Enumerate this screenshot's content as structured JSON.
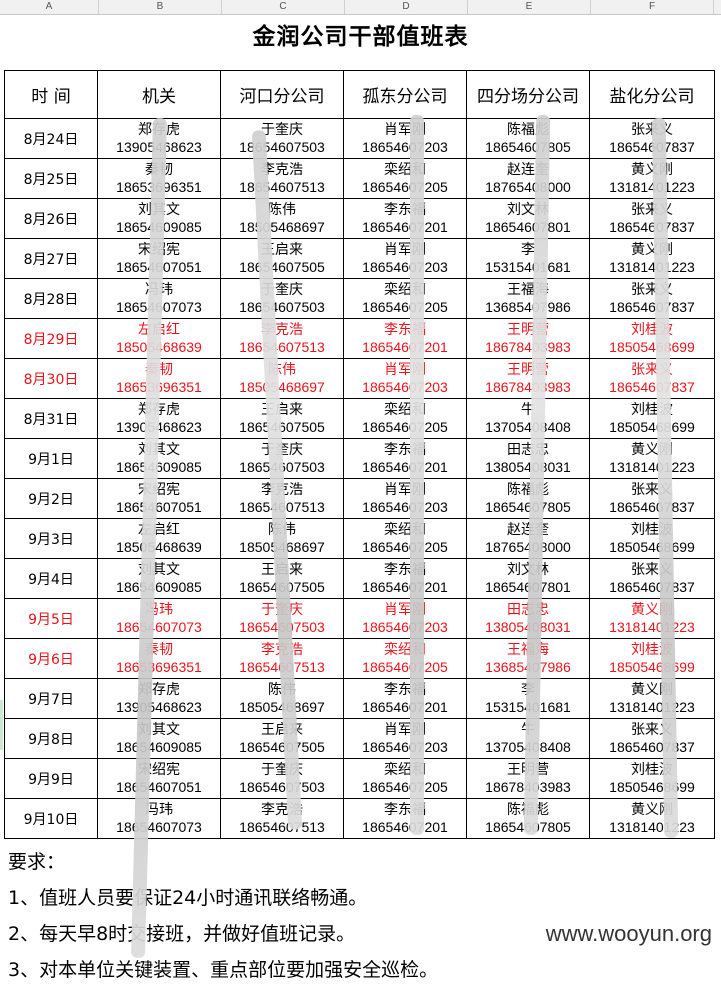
{
  "column_letters": [
    "A",
    "B",
    "C",
    "D",
    "E",
    "F"
  ],
  "title": "金润公司干部值班表",
  "headers": [
    "时 间",
    "机关",
    "河口分公司",
    "孤东分公司",
    "四分场分公司",
    "盐化分公司"
  ],
  "rows": [
    {
      "date": "8月24日",
      "highlight": false,
      "cells": [
        [
          "郑存虎",
          "13905468623"
        ],
        [
          "于奎庆",
          "18654607503"
        ],
        [
          "肖军刚",
          "18654607203"
        ],
        [
          "陈福彪",
          "18654607805"
        ],
        [
          "张来义",
          "18654607837"
        ]
      ]
    },
    {
      "date": "8月25日",
      "highlight": false,
      "cells": [
        [
          "秦韧",
          "18653696351"
        ],
        [
          "李克浩",
          "18654607513"
        ],
        [
          "栾绍和",
          "18654607205"
        ],
        [
          "赵连奎",
          "18765408000"
        ],
        [
          "黄义刚",
          "13181401223"
        ]
      ]
    },
    {
      "date": "8月26日",
      "highlight": false,
      "cells": [
        [
          "刘其文",
          "18654609085"
        ],
        [
          "陈伟",
          "18505468697"
        ],
        [
          "李东福",
          "18654607201"
        ],
        [
          "刘文林",
          "18654607801"
        ],
        [
          "张来义",
          "18654607837"
        ]
      ]
    },
    {
      "date": "8月27日",
      "highlight": false,
      "cells": [
        [
          "宋绍宪",
          "18654607051"
        ],
        [
          "王启来",
          "18654607505"
        ],
        [
          "肖军刚",
          "18654607203"
        ],
        [
          "李",
          "15315401681"
        ],
        [
          "黄义刚",
          "13181401223"
        ]
      ]
    },
    {
      "date": "8月28日",
      "highlight": false,
      "cells": [
        [
          "冯玮",
          "18654607073"
        ],
        [
          "于奎庆",
          "18654607503"
        ],
        [
          "栾绍和",
          "18654607205"
        ],
        [
          "王福海",
          "13685407986"
        ],
        [
          "张来义",
          "18654607837"
        ]
      ]
    },
    {
      "date": "8月29日",
      "highlight": true,
      "cells": [
        [
          "左启红",
          "18505468639"
        ],
        [
          "李克浩",
          "18654607513"
        ],
        [
          "李东福",
          "18654607201"
        ],
        [
          "王明营",
          "18678403983"
        ],
        [
          "刘桂波",
          "18505468699"
        ]
      ]
    },
    {
      "date": "8月30日",
      "highlight": true,
      "cells": [
        [
          "秦韧",
          "18653696351"
        ],
        [
          "陈伟",
          "18505468697"
        ],
        [
          "肖军刚",
          "18654607203"
        ],
        [
          "王明营",
          "18678403983"
        ],
        [
          "张来义",
          "18654607837"
        ]
      ]
    },
    {
      "date": "8月31日",
      "highlight": false,
      "cells": [
        [
          "郑存虎",
          "13905468623"
        ],
        [
          "王启来",
          "18654607505"
        ],
        [
          "栾绍和",
          "18654607205"
        ],
        [
          "牛",
          "13705408408"
        ],
        [
          "刘桂波",
          "18505468699"
        ]
      ]
    },
    {
      "date": "9月1日",
      "highlight": false,
      "cells": [
        [
          "刘其文",
          "18654609085"
        ],
        [
          "于奎庆",
          "18654607503"
        ],
        [
          "李东福",
          "18654607201"
        ],
        [
          "田志忠",
          "13805408031"
        ],
        [
          "黄义刚",
          "13181401223"
        ]
      ]
    },
    {
      "date": "9月2日",
      "highlight": false,
      "cells": [
        [
          "宋绍宪",
          "18654607051"
        ],
        [
          "李克浩",
          "18654607513"
        ],
        [
          "肖军刚",
          "18654607203"
        ],
        [
          "陈福彪",
          "18654607805"
        ],
        [
          "张来义",
          "18654607837"
        ]
      ]
    },
    {
      "date": "9月3日",
      "highlight": false,
      "cells": [
        [
          "左启红",
          "18505468639"
        ],
        [
          "陈伟",
          "18505468697"
        ],
        [
          "栾绍和",
          "18654607205"
        ],
        [
          "赵连奎",
          "18765408000"
        ],
        [
          "刘桂波",
          "18505468699"
        ]
      ]
    },
    {
      "date": "9月4日",
      "highlight": false,
      "cells": [
        [
          "刘其文",
          "18654609085"
        ],
        [
          "王启来",
          "18654607505"
        ],
        [
          "李东福",
          "18654607201"
        ],
        [
          "刘文林",
          "18654607801"
        ],
        [
          "张来义",
          "18654607837"
        ]
      ]
    },
    {
      "date": "9月5日",
      "highlight": true,
      "cells": [
        [
          "冯玮",
          "18654607073"
        ],
        [
          "于奎庆",
          "18654607503"
        ],
        [
          "肖军刚",
          "18654607203"
        ],
        [
          "田志忠",
          "13805408031"
        ],
        [
          "黄义刚",
          "13181401223"
        ]
      ]
    },
    {
      "date": "9月6日",
      "highlight": true,
      "cells": [
        [
          "秦韧",
          "18653696351"
        ],
        [
          "李克浩",
          "18654607513"
        ],
        [
          "栾绍和",
          "18654607205"
        ],
        [
          "王福海",
          "13685407986"
        ],
        [
          "刘桂波",
          "18505468699"
        ]
      ]
    },
    {
      "date": "9月7日",
      "highlight": false,
      "cells": [
        [
          "郑存虎",
          "13905468623"
        ],
        [
          "陈伟",
          "18505468697"
        ],
        [
          "李东福",
          "18654607201"
        ],
        [
          "李",
          "15315401681"
        ],
        [
          "黄义刚",
          "13181401223"
        ]
      ]
    },
    {
      "date": "9月8日",
      "highlight": false,
      "cells": [
        [
          "刘其文",
          "18654609085"
        ],
        [
          "王启来",
          "18654607505"
        ],
        [
          "肖军刚",
          "18654607203"
        ],
        [
          "牛",
          "13705408408"
        ],
        [
          "张来义",
          "18654607837"
        ]
      ]
    },
    {
      "date": "9月9日",
      "highlight": false,
      "cells": [
        [
          "宋绍宪",
          "18654607051"
        ],
        [
          "于奎庆",
          "18654607503"
        ],
        [
          "栾绍和",
          "18654607205"
        ],
        [
          "王明营",
          "18678403983"
        ],
        [
          "刘桂波",
          "18505468699"
        ]
      ]
    },
    {
      "date": "9月10日",
      "highlight": false,
      "cells": [
        [
          "冯玮",
          "18654607073"
        ],
        [
          "李克浩",
          "18654607513"
        ],
        [
          "李东福",
          "18654607201"
        ],
        [
          "陈福彪",
          "18654607805"
        ],
        [
          "黄义刚",
          "13181401223"
        ]
      ]
    }
  ],
  "notes": {
    "heading": "要求：",
    "items": [
      "1、值班人员要保证24小时通讯联络畅通。",
      "2、每天早8时交接班，并做好值班记录。",
      "3、对本单位关键装置、重点部位要加强安全巡检。"
    ]
  },
  "watermark": "www.wooyun.org",
  "colors": {
    "highlight_text": "#e8141c",
    "grid": "#000000"
  }
}
